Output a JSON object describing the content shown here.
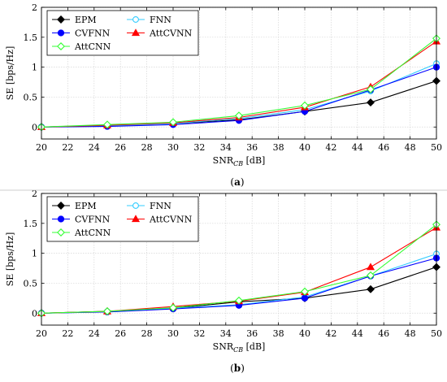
{
  "chart_data": [
    {
      "type": "line",
      "panel_label": "a",
      "xlabel": "SNR",
      "xlabel_sub": "CB",
      "xlabel_unit": " [dB]",
      "ylabel": "SE [bps/Hz]",
      "xlim": [
        20,
        50
      ],
      "ylim": [
        -0.2,
        2
      ],
      "xticks": [
        20,
        22,
        24,
        26,
        28,
        30,
        32,
        34,
        36,
        38,
        40,
        42,
        44,
        46,
        48,
        50
      ],
      "yticks": [
        0,
        0.5,
        1,
        1.5,
        2
      ],
      "ytick_labels": [
        "0",
        "0.5",
        "1",
        "1.5",
        "2"
      ],
      "grid": true,
      "legend_position": "top-left",
      "legend_columns": 2,
      "x": [
        20,
        25,
        30,
        35,
        40,
        45,
        50
      ],
      "series": [
        {
          "name": "EPM",
          "color": "#000000",
          "marker": "diamond",
          "values": [
            0.0,
            0.03,
            0.06,
            0.12,
            0.26,
            0.41,
            0.77
          ]
        },
        {
          "name": "FNN",
          "color": "#33ccff",
          "marker": "circle-open",
          "values": [
            0.0,
            0.02,
            0.06,
            0.14,
            0.29,
            0.6,
            1.06
          ]
        },
        {
          "name": "CVFNN",
          "color": "#0000ff",
          "marker": "circle",
          "values": [
            0.0,
            0.01,
            0.04,
            0.11,
            0.26,
            0.62,
            1.0
          ]
        },
        {
          "name": "AttCVNN",
          "color": "#ff0000",
          "marker": "triangle",
          "values": [
            0.0,
            0.03,
            0.07,
            0.16,
            0.33,
            0.67,
            1.43
          ]
        },
        {
          "name": "AttCNN",
          "color": "#33ff33",
          "marker": "diamond-open",
          "values": [
            0.0,
            0.04,
            0.08,
            0.19,
            0.36,
            0.63,
            1.48
          ]
        }
      ]
    },
    {
      "type": "line",
      "panel_label": "b",
      "xlabel": "SNR",
      "xlabel_sub": "CB",
      "xlabel_unit": " [dB]",
      "ylabel": "SE [bps/Hz]",
      "xlim": [
        20,
        50
      ],
      "ylim": [
        -0.2,
        2
      ],
      "xticks": [
        20,
        22,
        24,
        26,
        28,
        30,
        32,
        34,
        36,
        38,
        40,
        42,
        44,
        46,
        48,
        50
      ],
      "yticks": [
        0,
        0.5,
        1,
        1.5,
        2
      ],
      "ytick_labels": [
        "0",
        "0.5",
        "1",
        "1.5",
        "2"
      ],
      "grid": true,
      "legend_position": "top-left",
      "legend_columns": 2,
      "x": [
        20,
        25,
        30,
        35,
        40,
        45,
        50
      ],
      "series": [
        {
          "name": "EPM",
          "color": "#000000",
          "marker": "diamond",
          "values": [
            0.0,
            0.03,
            0.08,
            0.19,
            0.25,
            0.4,
            0.77
          ]
        },
        {
          "name": "FNN",
          "color": "#33ccff",
          "marker": "circle-open",
          "values": [
            0.0,
            0.02,
            0.08,
            0.14,
            0.27,
            0.62,
            0.99
          ]
        },
        {
          "name": "CVFNN",
          "color": "#0000ff",
          "marker": "circle",
          "values": [
            0.0,
            0.02,
            0.07,
            0.13,
            0.25,
            0.62,
            0.92
          ]
        },
        {
          "name": "AttCVNN",
          "color": "#ff0000",
          "marker": "triangle",
          "values": [
            0.0,
            0.03,
            0.11,
            0.2,
            0.35,
            0.77,
            1.43
          ]
        },
        {
          "name": "AttCNN",
          "color": "#33ff33",
          "marker": "diamond-open",
          "values": [
            0.0,
            0.03,
            0.09,
            0.21,
            0.36,
            0.63,
            1.48
          ]
        }
      ]
    }
  ]
}
